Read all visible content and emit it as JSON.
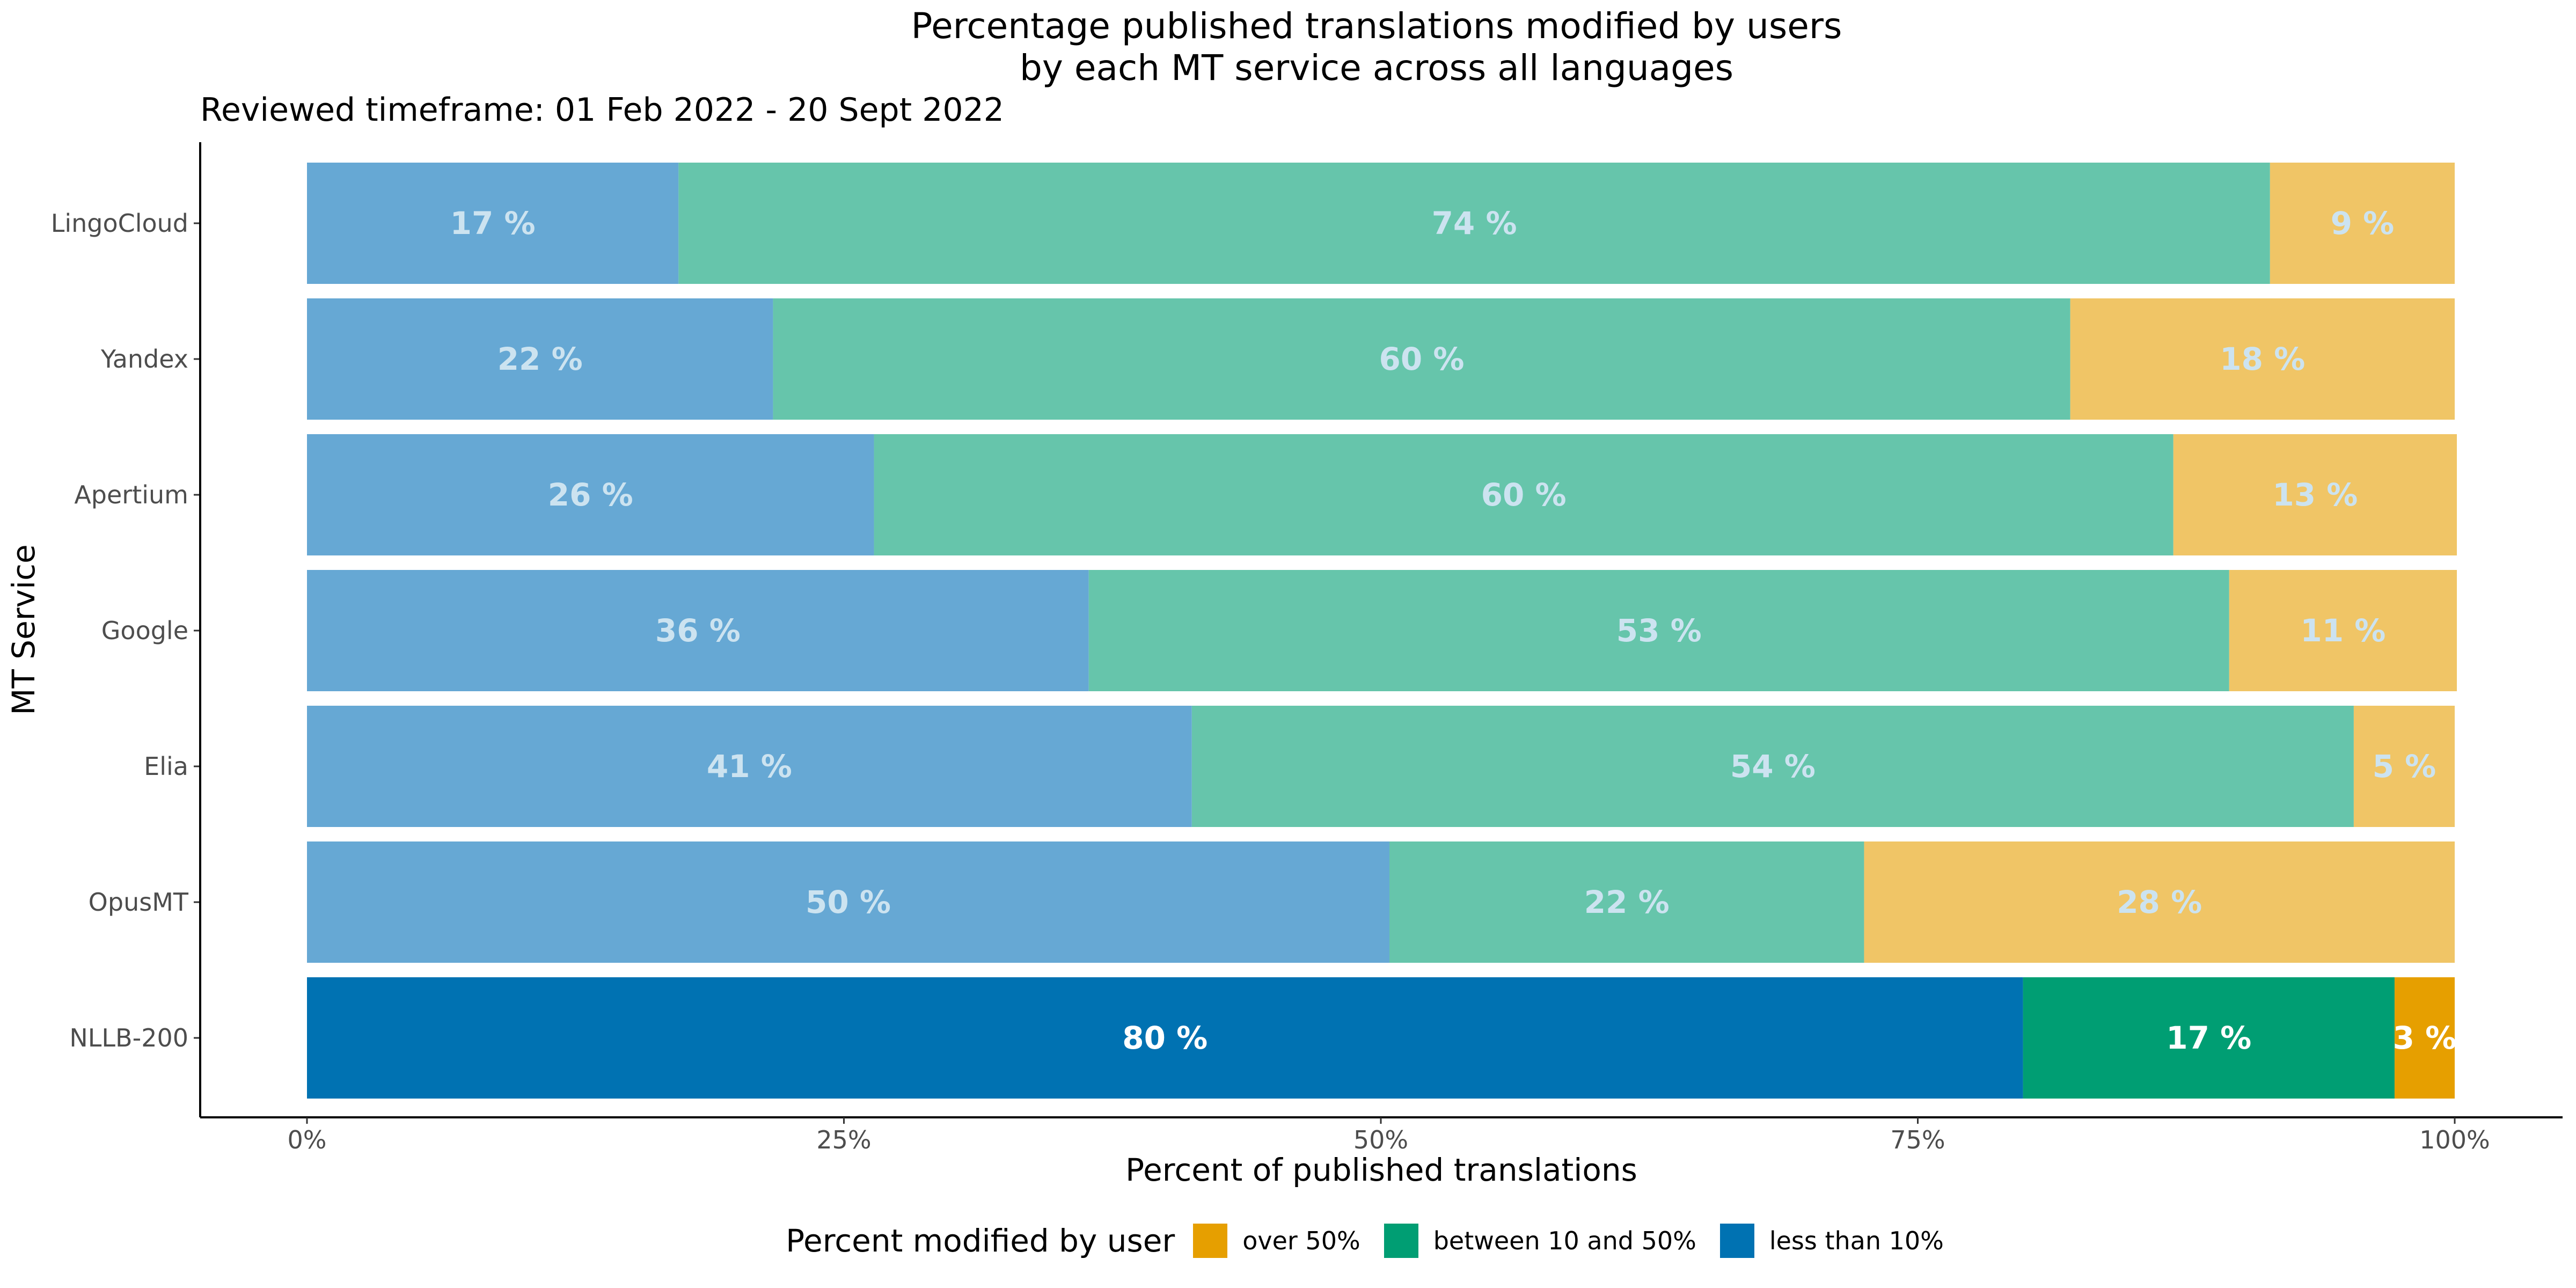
{
  "chart_data": {
    "type": "bar",
    "orientation": "horizontal",
    "stacked": true,
    "title": "Percentage published translations modified by users",
    "title_line2": "by each MT service across all languages",
    "subtitle": "Reviewed timeframe: 01 Feb 2022 - 20 Sept 2022",
    "xlabel": "Percent of published translations",
    "ylabel": "MT Service",
    "xlim": [
      0,
      100
    ],
    "x_ticks": [
      "0%",
      "25%",
      "50%",
      "75%",
      "100%"
    ],
    "categories": [
      "LingoCloud",
      "Yandex",
      "Apertium",
      "Google",
      "Elia",
      "OpusMT",
      "NLLB-200"
    ],
    "highlighted_category": "NLLB-200",
    "series": [
      {
        "name": "less than 10%",
        "values": [
          17.3,
          21.7,
          26.4,
          36.4,
          41.2,
          50.4,
          79.9
        ],
        "labels": [
          "17 %",
          "22 %",
          "26 %",
          "36 %",
          "41 %",
          "50 %",
          "80 %"
        ]
      },
      {
        "name": "between 10 and 50%",
        "values": [
          74.1,
          60.4,
          60.5,
          53.1,
          54.1,
          22.1,
          17.3
        ],
        "labels": [
          "74 %",
          "60 %",
          "60 %",
          "53 %",
          "54 %",
          "22 %",
          "17 %"
        ]
      },
      {
        "name": "over 50%",
        "values": [
          8.6,
          17.9,
          13.2,
          10.6,
          4.7,
          27.5,
          2.8
        ],
        "labels": [
          "9 %",
          "18 %",
          "13 %",
          "11 %",
          "5 %",
          "28 %",
          "3 %"
        ]
      }
    ],
    "legend": {
      "title": "Percent modified by user",
      "placement": "bottom",
      "entries": [
        "over 50%",
        "between 10 and 50%",
        "less than 10%"
      ]
    },
    "colors": {
      "less than 10%": "#0072b2",
      "between 10 and 50%": "#009e73",
      "over 50%": "#e69f00",
      "muted_less than 10%": "#66a8d4",
      "muted_between 10 and 50%": "#66c5ab",
      "muted_over 50%": "#f0c566",
      "label_normal": "#ffffff",
      "label_muted": "#cce3f0"
    },
    "grid": false
  }
}
